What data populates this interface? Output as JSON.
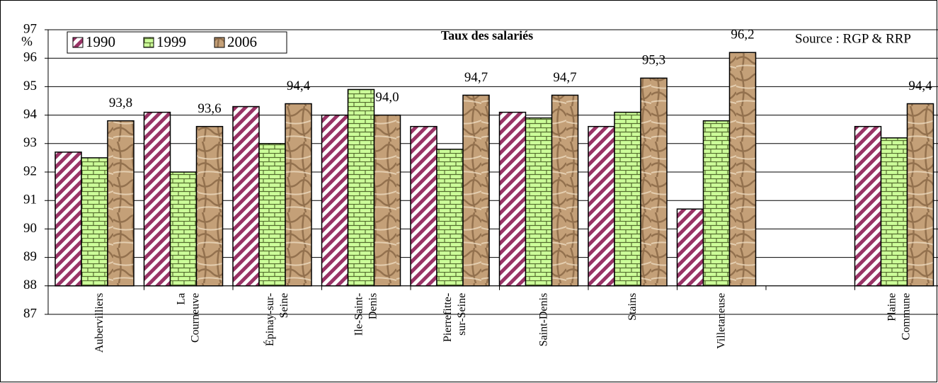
{
  "chart_data": {
    "type": "bar",
    "title": "Taux des salariés",
    "annotation": "Source : RGP & RRP",
    "y_label": "%",
    "categories": [
      "Aubervilliers",
      "La\nCourneuve",
      "Épinay-sur-\nSeine",
      "Ile-Saint-\nDenis",
      "Pierrefitte-\nsur-Seine",
      "Saint-Denis",
      "Stains",
      "Villetaneuse",
      null,
      "Plaine\nCommune"
    ],
    "series": [
      {
        "name": "1990",
        "color": "#993366",
        "values": [
          92.7,
          94.1,
          94.3,
          94.0,
          93.6,
          94.1,
          93.6,
          90.7,
          null,
          93.6
        ]
      },
      {
        "name": "1999",
        "color": "#99cc66",
        "values": [
          92.5,
          92.0,
          93.0,
          94.9,
          92.8,
          93.9,
          94.1,
          93.8,
          null,
          93.2
        ]
      },
      {
        "name": "2006",
        "color": "#c4a078",
        "values": [
          93.8,
          93.6,
          94.4,
          94.0,
          94.7,
          94.7,
          95.3,
          96.2,
          null,
          94.4
        ],
        "value_labels": [
          "93,8",
          "93,6",
          "94,4",
          "94,0",
          "94,7",
          "94,7",
          "95,3",
          "96,2",
          null,
          "94,4"
        ]
      }
    ],
    "ylim": [
      87,
      97
    ],
    "yticks": [
      87,
      88,
      89,
      90,
      91,
      92,
      93,
      94,
      95,
      96,
      97
    ],
    "x_axis_crosses": 88,
    "grid": true,
    "legend": "top-left"
  }
}
